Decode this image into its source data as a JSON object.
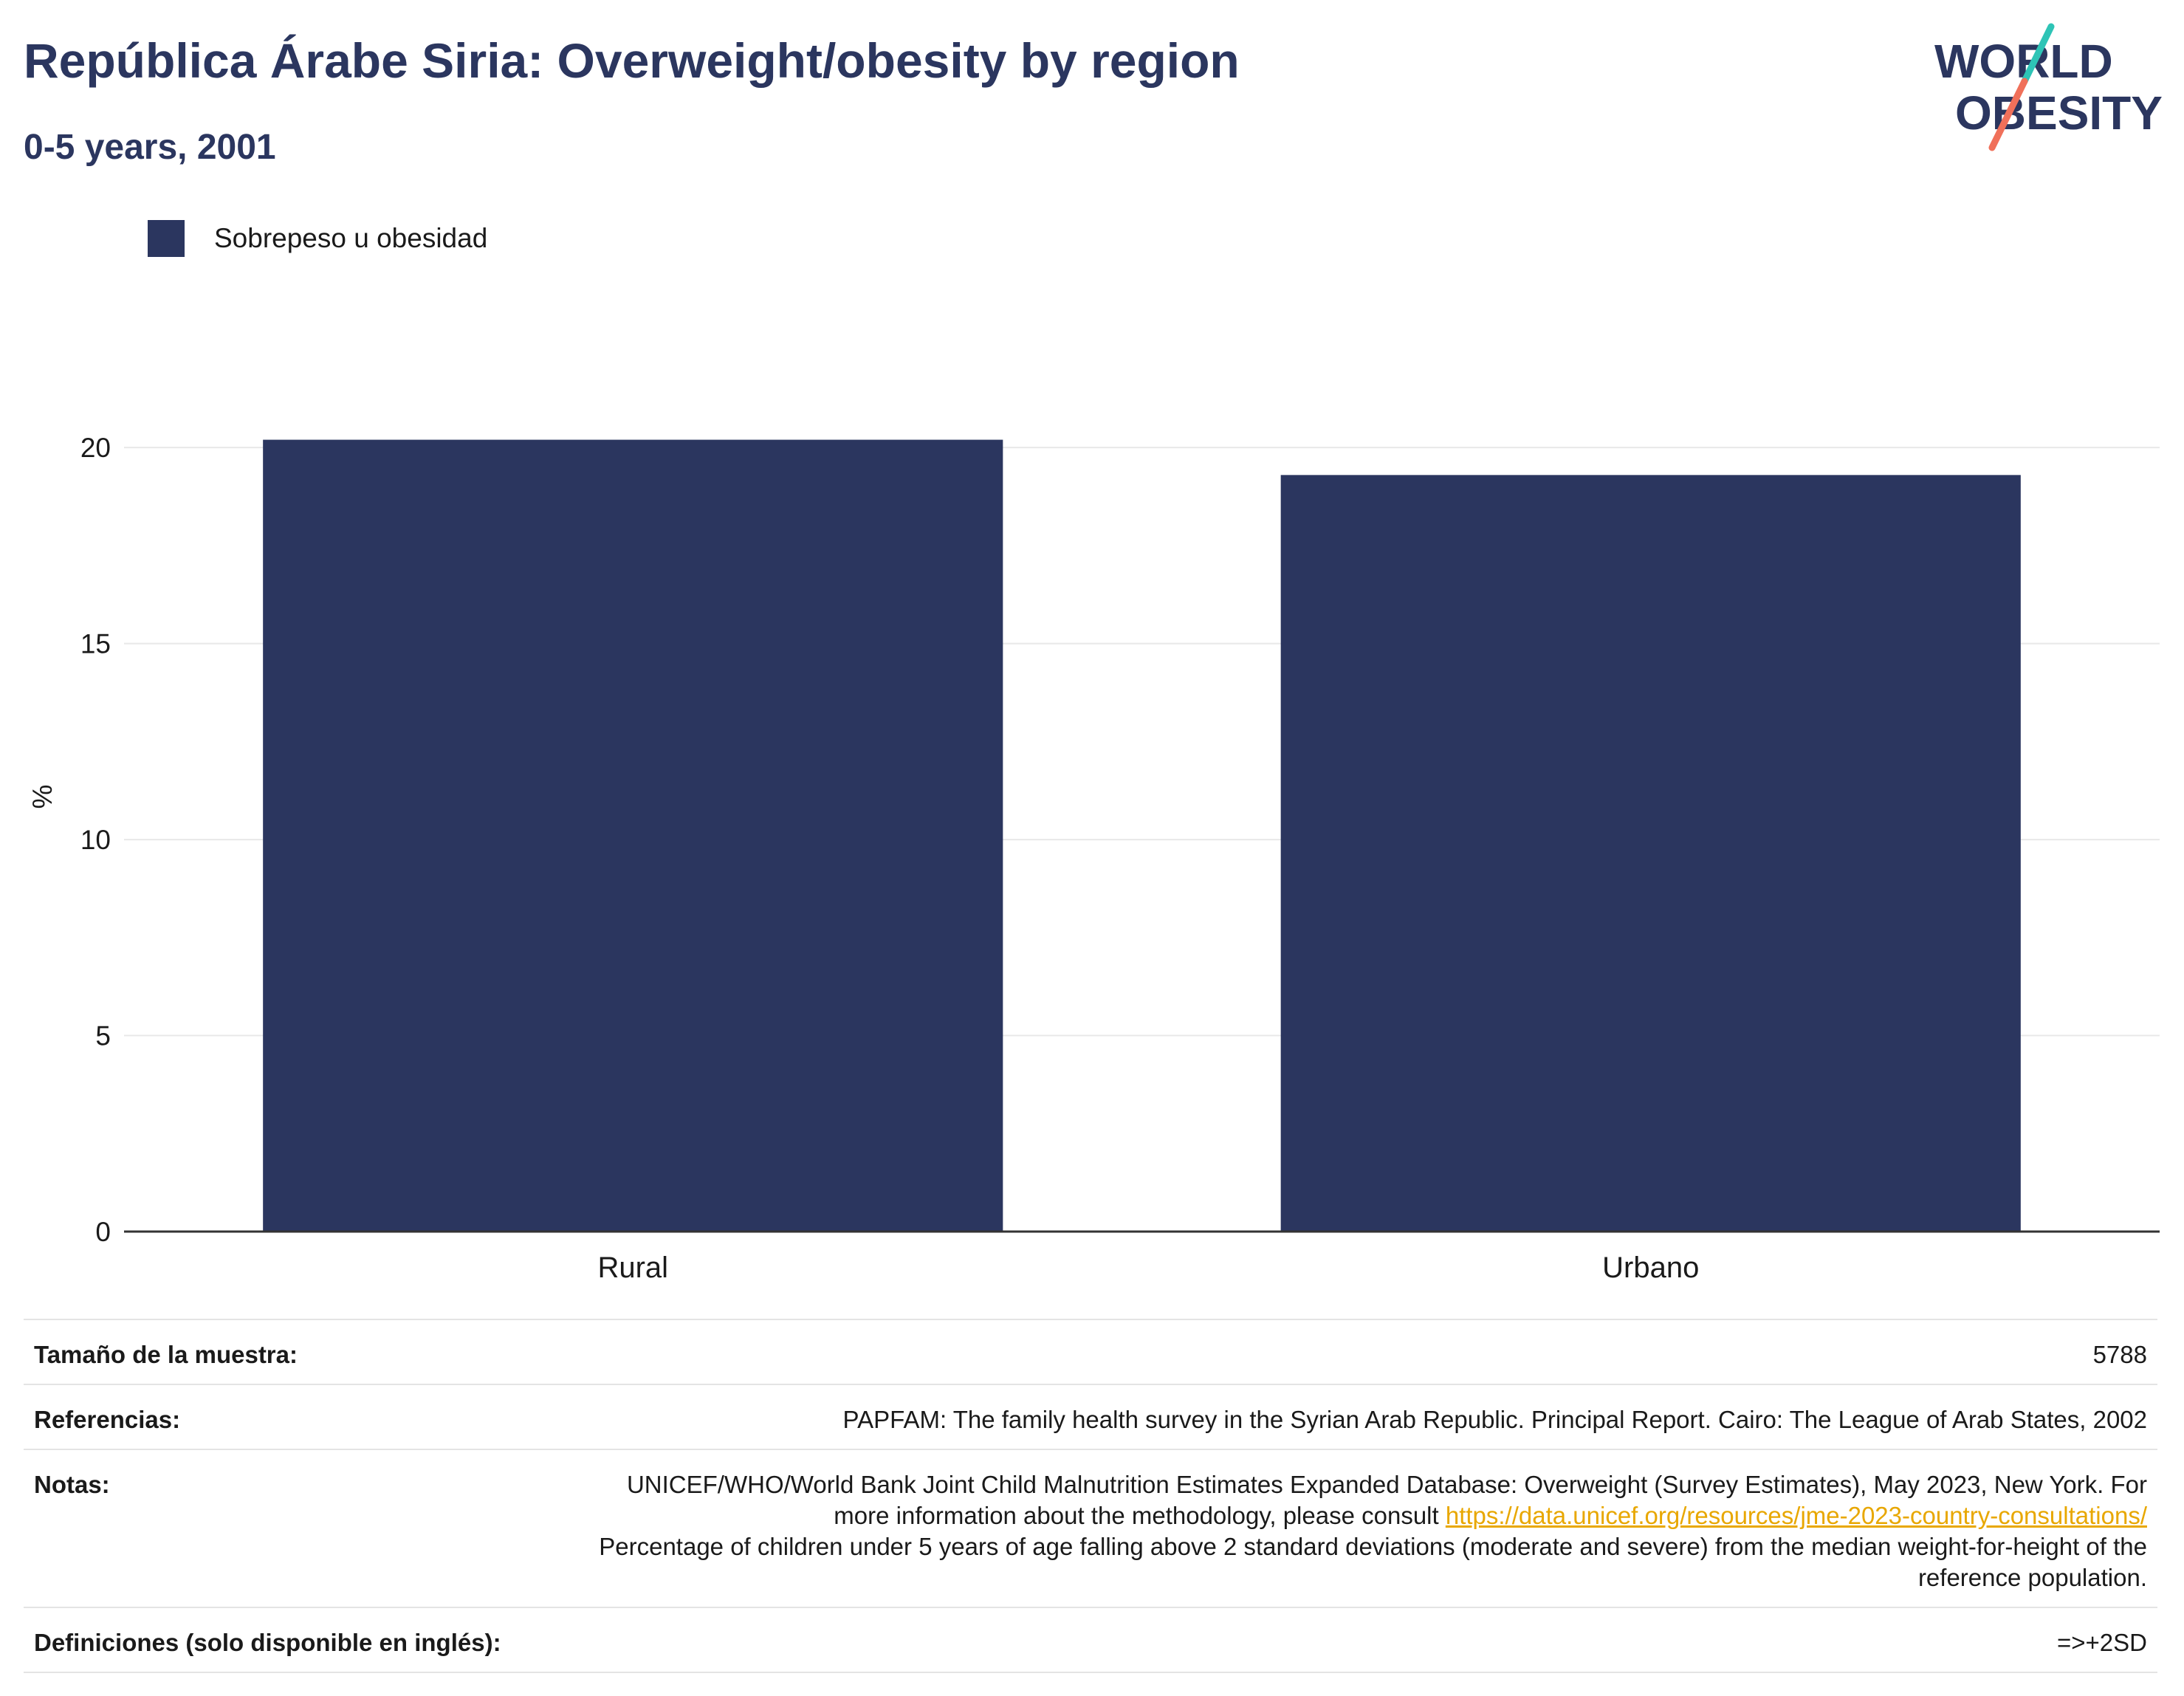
{
  "header": {
    "title": "República Árabe Siria: Overweight/obesity by region",
    "subtitle": "0-5 years, 2001"
  },
  "logo": {
    "line1": "WORLD",
    "line2": "OBESITY"
  },
  "chart_data": {
    "type": "bar",
    "categories": [
      "Rural",
      "Urbano"
    ],
    "series": [
      {
        "name": "Sobrepeso u obesidad",
        "values": [
          20.2,
          19.3
        ],
        "color": "#2b365f"
      }
    ],
    "ylabel": "%",
    "xlabel": "",
    "ylim": [
      0,
      22
    ],
    "yticks": [
      0,
      5,
      10,
      15,
      20
    ],
    "grid": true,
    "legend_position": "top-left"
  },
  "info": {
    "sample_label": "Tamaño de la muestra:",
    "sample_value": "5788",
    "refs_label": "Referencias:",
    "refs_value": "PAPFAM: The family health survey in the Syrian Arab Republic. Principal Report. Cairo: The League of Arab States, 2002",
    "notes_label": "Notas:",
    "notes_text1": "UNICEF/WHO/World Bank Joint Child Malnutrition Estimates Expanded Database: Overweight (Survey Estimates), May 2023, New York. For more information about the methodology, please consult ",
    "notes_link": "https://data.unicef.org/resources/jme-2023-country-consultations/",
    "notes_text2": "Percentage of children under 5 years of age falling above 2 standard deviations (moderate and severe) from the median weight-for-height of the reference population.",
    "defs_label": "Definiciones (solo disponible en inglés):",
    "defs_value": "=>+2SD"
  }
}
